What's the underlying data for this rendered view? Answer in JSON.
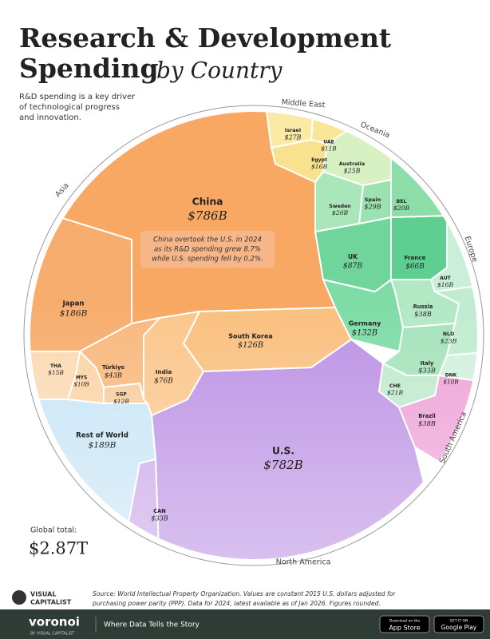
{
  "chart_data": {
    "type": "voronoi",
    "title_line1": "Research & Development",
    "title_line2": "Spending",
    "title_italic": "by Country",
    "description": [
      "R&D spending is a key driver",
      "of technological progress",
      "and innovation."
    ],
    "regions": [
      "Middle East",
      "Oceania",
      "Asia",
      "Europe",
      "South America",
      "North America"
    ],
    "countries": [
      {
        "name": "China",
        "value": 786,
        "value_label": "$786B",
        "color": "#f8a862"
      },
      {
        "name": "U.S.",
        "value": 782,
        "value_label": "$782B",
        "color": "#bc92e4"
      },
      {
        "name": "Rest of World",
        "value": 189,
        "value_label": "$189B",
        "color": "#c9e5f6"
      },
      {
        "name": "Japan",
        "value": 186,
        "value_label": "$186B",
        "color": "#f7ad6e"
      },
      {
        "name": "Germany",
        "value": 132,
        "value_label": "$132B",
        "color": "#7fdca6"
      },
      {
        "name": "South Korea",
        "value": 126,
        "value_label": "$126B",
        "color": "#fac07f"
      },
      {
        "name": "UK",
        "value": 87,
        "value_label": "$87B",
        "color": "#6fd59b"
      },
      {
        "name": "India",
        "value": 76,
        "value_label": "$76B",
        "color": "#fbc68b"
      },
      {
        "name": "France",
        "value": 66,
        "value_label": "$66B",
        "color": "#5ecf90"
      },
      {
        "name": "Türkiye",
        "value": 43,
        "value_label": "$43B",
        "color": "#f9b87d"
      },
      {
        "name": "Russia",
        "value": 38,
        "value_label": "$38B",
        "color": "#b3e8c5"
      },
      {
        "name": "Brazil",
        "value": 38,
        "value_label": "$38B",
        "color": "#eea2d7"
      },
      {
        "name": "Italy",
        "value": 33,
        "value_label": "$33B",
        "color": "#a5e3bb"
      },
      {
        "name": "CAN",
        "value": 33,
        "value_label": "$33B",
        "color": "#caa8ea"
      },
      {
        "name": "Israel",
        "value": 27,
        "value_label": "$27B",
        "color": "#fbe9a6"
      },
      {
        "name": "Spain",
        "value": 29,
        "value_label": "$29B",
        "color": "#9ce2b0"
      },
      {
        "name": "Australia",
        "value": 25,
        "value_label": "$25B",
        "color": "#d8f1c3"
      },
      {
        "name": "Sweden",
        "value": 20,
        "value_label": "$20B",
        "color": "#a9e6b9"
      },
      {
        "name": "BEL",
        "value": 20,
        "value_label": "$20B",
        "color": "#8cdda7"
      },
      {
        "name": "NLD",
        "value": 23,
        "value_label": "$23B",
        "color": "#c1ecd0"
      },
      {
        "name": "CHE",
        "value": 21,
        "value_label": "$21B",
        "color": "#bfe9cd"
      },
      {
        "name": "AUT",
        "value": 16,
        "value_label": "$16B",
        "color": "#c9efd8"
      },
      {
        "name": "Egypt",
        "value": 16,
        "value_label": "$16B",
        "color": "#f8e290"
      },
      {
        "name": "THA",
        "value": 15,
        "value_label": "$15B",
        "color": "#fcdab2"
      },
      {
        "name": "SGP",
        "value": 12,
        "value_label": "$12B",
        "color": "#f9cb9c"
      },
      {
        "name": "UAE",
        "value": 11,
        "value_label": "$11B",
        "color": "#fae699"
      },
      {
        "name": "MYS",
        "value": 10,
        "value_label": "$10B",
        "color": "#fbd3a4"
      },
      {
        "name": "DNK",
        "value": 10,
        "value_label": "$10B",
        "color": "#d1f1dd"
      }
    ],
    "annotation": [
      "China overtook the U.S. in 2024",
      "as its R&D spending grew 8.7%",
      "while U.S. spending fell by 0.2%."
    ],
    "total": {
      "label": "Global total:",
      "value": 2870,
      "value_label": "$2.87T"
    },
    "source": [
      "Source: World Intellectual Property Organization. Values are constant 2015 U.S. dollars adjusted for",
      "purchasing power parity (PPP). Data for 2024, latest available as of Jan 2026. Figures rounded."
    ]
  },
  "footer": {
    "logo": [
      "VISUAL",
      "CAPITALIST"
    ],
    "brand": "voronoi",
    "brand_sub": "BY VISUAL CAPITALIST",
    "tagline": "Where Data Tells the Story",
    "app_store_small": "Download on the",
    "app_store": "App Store",
    "google_small": "GET IT ON",
    "google": "Google Play"
  }
}
